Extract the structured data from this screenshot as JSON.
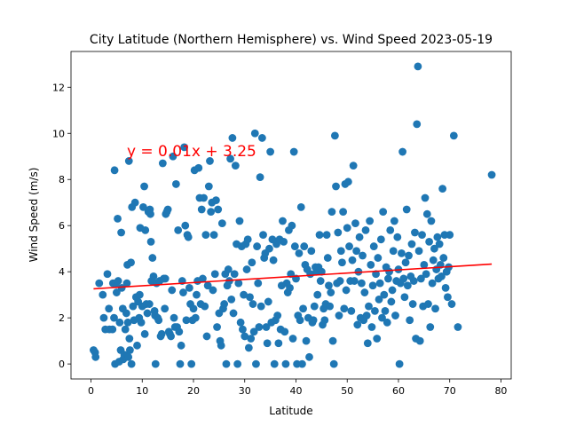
{
  "chart_data": {
    "type": "scatter",
    "title": "City Latitude (Northern Hemisphere) vs. Wind Speed 2023-05-19",
    "xlabel": "Latitude",
    "ylabel": "Wind Speed (m/s)",
    "xlim": [
      -3.9,
      82.0
    ],
    "ylim": [
      -0.65,
      13.55
    ],
    "xticks": [
      0,
      10,
      20,
      30,
      40,
      50,
      60,
      70,
      80
    ],
    "yticks": [
      0,
      2,
      4,
      6,
      8,
      10,
      12
    ],
    "grid": false,
    "legend": "none",
    "marker_color": "#1f77b4",
    "regression": {
      "slope": 0.01,
      "intercept": 3.25,
      "x_range": [
        0.5,
        78.2
      ],
      "y_range": [
        3.26,
        4.33
      ],
      "color": "#ff0000",
      "equation": "y = 0.01x + 3.25",
      "label_position": [
        7.0,
        9.0
      ]
    },
    "points": [
      [
        0.5,
        0.6
      ],
      [
        0.8,
        0.5
      ],
      [
        0.9,
        0.3
      ],
      [
        1.6,
        3.5
      ],
      [
        2.3,
        3.0
      ],
      [
        2.5,
        2.0
      ],
      [
        2.8,
        1.5
      ],
      [
        3.2,
        3.9
      ],
      [
        3.5,
        2.4
      ],
      [
        3.6,
        1.5
      ],
      [
        4.2,
        1.5
      ],
      [
        4.3,
        3.5
      ],
      [
        4.5,
        2.0
      ],
      [
        4.6,
        8.4
      ],
      [
        4.7,
        0.0
      ],
      [
        4.9,
        3.5
      ],
      [
        5.0,
        3.1
      ],
      [
        5.2,
        6.3
      ],
      [
        5.3,
        3.6
      ],
      [
        5.5,
        0.1
      ],
      [
        5.6,
        1.8
      ],
      [
        5.8,
        0.6
      ],
      [
        5.9,
        5.7
      ],
      [
        6.0,
        3.3
      ],
      [
        6.2,
        2.4
      ],
      [
        6.3,
        0.2
      ],
      [
        6.5,
        0.4
      ],
      [
        6.7,
        1.5
      ],
      [
        6.9,
        2.2
      ],
      [
        7.0,
        3.5
      ],
      [
        7.1,
        4.3
      ],
      [
        7.2,
        1.8
      ],
      [
        7.3,
        0.3
      ],
      [
        7.4,
        8.8
      ],
      [
        7.5,
        1.1
      ],
      [
        7.6,
        0.6
      ],
      [
        7.8,
        4.4
      ],
      [
        7.9,
        0.0
      ],
      [
        8.0,
        6.8
      ],
      [
        8.2,
        2.5
      ],
      [
        8.4,
        1.9
      ],
      [
        8.6,
        7.0
      ],
      [
        8.8,
        2.9
      ],
      [
        9.0,
        0.8
      ],
      [
        9.2,
        2.7
      ],
      [
        9.4,
        2.0
      ],
      [
        9.5,
        3.0
      ],
      [
        9.6,
        5.9
      ],
      [
        9.8,
        1.8
      ],
      [
        10.0,
        2.5
      ],
      [
        10.2,
        6.8
      ],
      [
        10.4,
        7.7
      ],
      [
        10.5,
        1.3
      ],
      [
        10.6,
        5.8
      ],
      [
        10.8,
        2.6
      ],
      [
        11.0,
        2.2
      ],
      [
        11.2,
        6.6
      ],
      [
        11.4,
        2.6
      ],
      [
        11.5,
        6.7
      ],
      [
        11.6,
        6.5
      ],
      [
        11.7,
        5.3
      ],
      [
        11.8,
        3.6
      ],
      [
        12.0,
        4.6
      ],
      [
        12.2,
        3.8
      ],
      [
        12.4,
        2.3
      ],
      [
        12.5,
        2.1
      ],
      [
        12.6,
        0.0
      ],
      [
        12.8,
        3.5
      ],
      [
        13.0,
        2.0
      ],
      [
        13.2,
        1.9
      ],
      [
        13.4,
        3.6
      ],
      [
        13.6,
        1.2
      ],
      [
        13.8,
        1.3
      ],
      [
        14.0,
        8.7
      ],
      [
        14.2,
        3.7
      ],
      [
        14.4,
        2.4
      ],
      [
        14.5,
        3.7
      ],
      [
        14.6,
        6.5
      ],
      [
        14.8,
        6.6
      ],
      [
        15.0,
        6.7
      ],
      [
        15.2,
        1.4
      ],
      [
        15.4,
        1.3
      ],
      [
        15.6,
        1.2
      ],
      [
        15.8,
        3.2
      ],
      [
        16.0,
        9.0
      ],
      [
        16.2,
        2.0
      ],
      [
        16.4,
        1.6
      ],
      [
        16.6,
        7.8
      ],
      [
        16.8,
        1.6
      ],
      [
        17.0,
        5.8
      ],
      [
        17.2,
        1.4
      ],
      [
        17.4,
        0.0
      ],
      [
        17.6,
        0.8
      ],
      [
        17.8,
        3.6
      ],
      [
        18.0,
        3.1
      ],
      [
        18.2,
        9.4
      ],
      [
        18.4,
        6.0
      ],
      [
        18.6,
        1.9
      ],
      [
        18.8,
        5.6
      ],
      [
        19.0,
        5.5
      ],
      [
        19.2,
        3.3
      ],
      [
        19.4,
        2.6
      ],
      [
        19.6,
        0.0
      ],
      [
        19.8,
        1.9
      ],
      [
        20.0,
        2.4
      ],
      [
        20.2,
        8.4
      ],
      [
        20.4,
        2.0
      ],
      [
        20.6,
        3.0
      ],
      [
        20.8,
        3.6
      ],
      [
        21.0,
        8.5
      ],
      [
        21.2,
        7.2
      ],
      [
        21.4,
        2.6
      ],
      [
        21.6,
        6.7
      ],
      [
        21.8,
        3.7
      ],
      [
        22.0,
        7.2
      ],
      [
        22.2,
        2.5
      ],
      [
        22.4,
        5.6
      ],
      [
        22.6,
        1.2
      ],
      [
        22.8,
        3.4
      ],
      [
        23.0,
        7.7
      ],
      [
        23.2,
        8.8
      ],
      [
        23.4,
        6.6
      ],
      [
        23.6,
        7.0
      ],
      [
        23.8,
        3.2
      ],
      [
        24.0,
        5.6
      ],
      [
        24.2,
        3.9
      ],
      [
        24.4,
        7.1
      ],
      [
        24.6,
        1.6
      ],
      [
        24.8,
        6.7
      ],
      [
        25.0,
        2.2
      ],
      [
        25.2,
        1.0
      ],
      [
        25.4,
        0.8
      ],
      [
        25.6,
        6.1
      ],
      [
        25.8,
        2.4
      ],
      [
        26.0,
        2.6
      ],
      [
        26.2,
        3.9
      ],
      [
        26.4,
        0.0
      ],
      [
        26.6,
        3.4
      ],
      [
        26.8,
        4.1
      ],
      [
        27.0,
        3.6
      ],
      [
        27.2,
        8.9
      ],
      [
        27.4,
        2.8
      ],
      [
        27.6,
        9.8
      ],
      [
        27.8,
        2.2
      ],
      [
        28.0,
        3.9
      ],
      [
        28.2,
        8.6
      ],
      [
        28.4,
        5.2
      ],
      [
        28.6,
        0.0
      ],
      [
        28.8,
        3.5
      ],
      [
        29.0,
        6.2
      ],
      [
        29.2,
        1.8
      ],
      [
        29.4,
        5.1
      ],
      [
        29.6,
        1.5
      ],
      [
        29.8,
        3.0
      ],
      [
        30.0,
        1.2
      ],
      [
        30.2,
        5.2
      ],
      [
        30.4,
        4.1
      ],
      [
        30.6,
        5.4
      ],
      [
        30.8,
        0.7
      ],
      [
        31.0,
        2.9
      ],
      [
        31.2,
        1.1
      ],
      [
        31.4,
        4.4
      ],
      [
        31.6,
        2.6
      ],
      [
        31.8,
        1.4
      ],
      [
        32.0,
        10.0
      ],
      [
        32.2,
        0.0
      ],
      [
        32.4,
        5.1
      ],
      [
        32.6,
        3.5
      ],
      [
        32.8,
        1.6
      ],
      [
        33.0,
        8.1
      ],
      [
        33.2,
        2.5
      ],
      [
        33.4,
        9.8
      ],
      [
        33.6,
        5.6
      ],
      [
        33.8,
        4.6
      ],
      [
        34.0,
        4.8
      ],
      [
        34.2,
        1.6
      ],
      [
        34.4,
        0.9
      ],
      [
        34.6,
        2.7
      ],
      [
        34.8,
        5.0
      ],
      [
        35.0,
        9.2
      ],
      [
        35.2,
        1.8
      ],
      [
        35.4,
        5.4
      ],
      [
        35.6,
        4.5
      ],
      [
        35.8,
        0.0
      ],
      [
        36.0,
        1.9
      ],
      [
        36.2,
        5.2
      ],
      [
        36.4,
        2.1
      ],
      [
        36.6,
        0.9
      ],
      [
        36.8,
        5.4
      ],
      [
        37.0,
        1.5
      ],
      [
        37.2,
        3.4
      ],
      [
        37.4,
        6.2
      ],
      [
        37.6,
        5.3
      ],
      [
        37.8,
        1.4
      ],
      [
        38.0,
        0.0
      ],
      [
        38.2,
        3.5
      ],
      [
        38.4,
        3.1
      ],
      [
        38.6,
        5.8
      ],
      [
        38.8,
        3.3
      ],
      [
        39.0,
        3.9
      ],
      [
        39.2,
        6.0
      ],
      [
        39.4,
        1.1
      ],
      [
        39.6,
        9.2
      ],
      [
        39.8,
        5.1
      ],
      [
        40.0,
        3.7
      ],
      [
        40.2,
        0.0
      ],
      [
        40.4,
        2.1
      ],
      [
        40.6,
        4.8
      ],
      [
        40.8,
        1.9
      ],
      [
        41.0,
        6.8
      ],
      [
        41.2,
        0.0
      ],
      [
        41.4,
        2.4
      ],
      [
        41.6,
        5.1
      ],
      [
        41.8,
        4.3
      ],
      [
        42.0,
        1.0
      ],
      [
        42.2,
        4.1
      ],
      [
        42.4,
        2.0
      ],
      [
        42.6,
        0.3
      ],
      [
        42.8,
        3.9
      ],
      [
        43.0,
        4.9
      ],
      [
        43.2,
        1.8
      ],
      [
        43.4,
        1.9
      ],
      [
        43.6,
        2.5
      ],
      [
        43.8,
        4.2
      ],
      [
        44.0,
        4.0
      ],
      [
        44.2,
        3.0
      ],
      [
        44.4,
        4.2
      ],
      [
        44.6,
        5.6
      ],
      [
        44.8,
        3.6
      ],
      [
        45.0,
        4.0
      ],
      [
        45.2,
        1.7
      ],
      [
        45.4,
        2.4
      ],
      [
        45.6,
        1.9
      ],
      [
        45.8,
        2.6
      ],
      [
        46.0,
        5.6
      ],
      [
        46.2,
        4.6
      ],
      [
        46.4,
        3.4
      ],
      [
        46.6,
        2.5
      ],
      [
        46.8,
        3.1
      ],
      [
        47.0,
        6.6
      ],
      [
        47.2,
        1.0
      ],
      [
        47.4,
        0.0
      ],
      [
        47.6,
        9.9
      ],
      [
        47.8,
        7.7
      ],
      [
        48.0,
        3.5
      ],
      [
        48.2,
        5.7
      ],
      [
        48.4,
        2.1
      ],
      [
        48.6,
        3.6
      ],
      [
        48.8,
        4.9
      ],
      [
        49.0,
        4.4
      ],
      [
        49.2,
        6.6
      ],
      [
        49.4,
        2.4
      ],
      [
        49.6,
        7.8
      ],
      [
        49.8,
        3.2
      ],
      [
        50.0,
        5.9
      ],
      [
        50.2,
        7.9
      ],
      [
        50.4,
        5.1
      ],
      [
        50.6,
        3.6
      ],
      [
        50.8,
        2.3
      ],
      [
        51.0,
        4.5
      ],
      [
        51.2,
        8.6
      ],
      [
        51.4,
        3.6
      ],
      [
        51.6,
        6.1
      ],
      [
        51.8,
        4.9
      ],
      [
        52.0,
        1.7
      ],
      [
        52.2,
        4.0
      ],
      [
        52.4,
        5.5
      ],
      [
        52.6,
        2.0
      ],
      [
        52.8,
        3.5
      ],
      [
        53.0,
        4.7
      ],
      [
        53.2,
        1.9
      ],
      [
        53.4,
        3.1
      ],
      [
        53.6,
        5.8
      ],
      [
        53.8,
        2.1
      ],
      [
        54.0,
        0.9
      ],
      [
        54.2,
        2.5
      ],
      [
        54.4,
        6.2
      ],
      [
        54.6,
        4.3
      ],
      [
        54.8,
        1.6
      ],
      [
        55.0,
        3.4
      ],
      [
        55.2,
        5.1
      ],
      [
        55.4,
        2.3
      ],
      [
        55.6,
        3.9
      ],
      [
        55.8,
        1.1
      ],
      [
        56.0,
        4.6
      ],
      [
        56.2,
        2.8
      ],
      [
        56.4,
        3.5
      ],
      [
        56.6,
        5.4
      ],
      [
        56.8,
        2.0
      ],
      [
        57.0,
        6.6
      ],
      [
        57.2,
        3.0
      ],
      [
        57.4,
        2.3
      ],
      [
        57.6,
        4.2
      ],
      [
        57.8,
        1.8
      ],
      [
        58.0,
        3.7
      ],
      [
        58.2,
        4.0
      ],
      [
        58.4,
        5.8
      ],
      [
        58.6,
        2.7
      ],
      [
        58.8,
        3.2
      ],
      [
        59.0,
        4.9
      ],
      [
        59.2,
        6.2
      ],
      [
        59.4,
        2.1
      ],
      [
        59.6,
        3.6
      ],
      [
        59.8,
        5.5
      ],
      [
        60.0,
        4.1
      ],
      [
        60.2,
        0.0
      ],
      [
        60.4,
        3.5
      ],
      [
        60.6,
        4.8
      ],
      [
        60.8,
        9.2
      ],
      [
        61.0,
        3.7
      ],
      [
        61.2,
        2.9
      ],
      [
        61.4,
        4.4
      ],
      [
        61.6,
        6.7
      ],
      [
        61.8,
        3.4
      ],
      [
        62.0,
        4.7
      ],
      [
        62.2,
        1.9
      ],
      [
        62.4,
        3.8
      ],
      [
        62.6,
        5.2
      ],
      [
        62.8,
        2.6
      ],
      [
        63.0,
        3.6
      ],
      [
        63.2,
        5.7
      ],
      [
        63.4,
        1.1
      ],
      [
        63.6,
        10.4
      ],
      [
        63.8,
        12.9
      ],
      [
        64.0,
        4.9
      ],
      [
        64.2,
        1.0
      ],
      [
        64.4,
        3.7
      ],
      [
        64.6,
        5.6
      ],
      [
        64.8,
        2.5
      ],
      [
        65.0,
        4.3
      ],
      [
        65.2,
        7.2
      ],
      [
        65.4,
        3.9
      ],
      [
        65.6,
        6.5
      ],
      [
        65.8,
        2.6
      ],
      [
        66.0,
        5.3
      ],
      [
        66.2,
        1.6
      ],
      [
        66.4,
        6.2
      ],
      [
        66.6,
        3.5
      ],
      [
        66.8,
        4.5
      ],
      [
        67.0,
        5.0
      ],
      [
        67.2,
        2.4
      ],
      [
        67.4,
        4.1
      ],
      [
        67.6,
        5.5
      ],
      [
        67.8,
        3.7
      ],
      [
        68.0,
        5.2
      ],
      [
        68.2,
        4.3
      ],
      [
        68.4,
        3.8
      ],
      [
        68.6,
        7.6
      ],
      [
        68.8,
        4.6
      ],
      [
        69.0,
        5.6
      ],
      [
        69.2,
        3.3
      ],
      [
        69.4,
        4.0
      ],
      [
        69.6,
        2.9
      ],
      [
        69.8,
        4.2
      ],
      [
        70.0,
        5.6
      ],
      [
        70.4,
        2.6
      ],
      [
        70.8,
        9.9
      ],
      [
        71.6,
        1.6
      ],
      [
        78.2,
        8.2
      ]
    ]
  }
}
